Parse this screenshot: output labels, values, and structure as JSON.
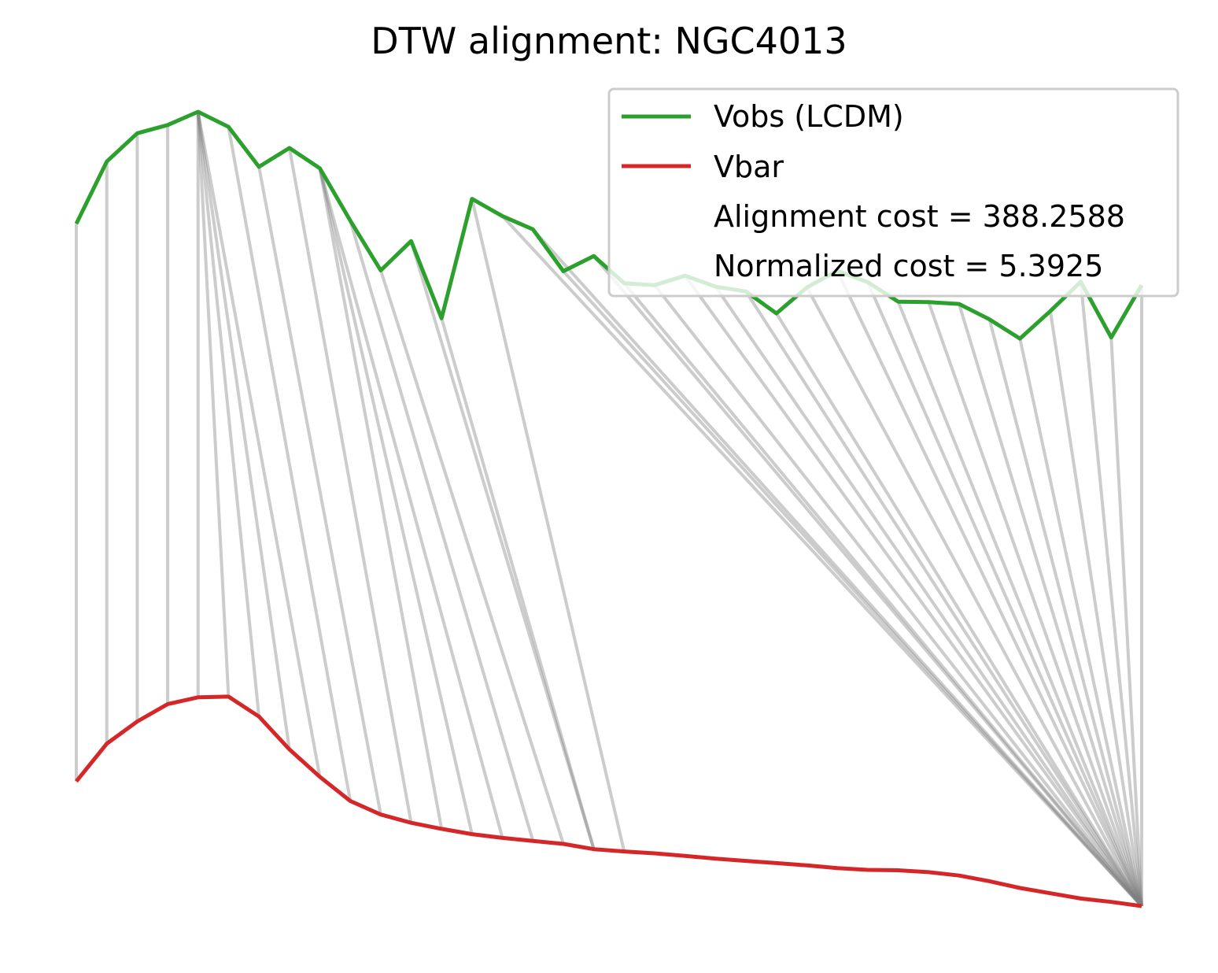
{
  "chart_data": {
    "type": "line",
    "title": "DTW alignment: NGC4013",
    "xlabel": "",
    "ylabel": "",
    "axes_visible": false,
    "grid": false,
    "legend_position": "top-right",
    "colors": {
      "vobs": "#2ca02c",
      "vbar": "#d62728",
      "alignment": "#808080"
    },
    "series": [
      {
        "name": "Vobs (LCDM)",
        "key": "vobs",
        "values": [
          0.7,
          0.865,
          0.94,
          0.962,
          0.997,
          0.957,
          0.851,
          0.901,
          0.847,
          0.708,
          0.576,
          0.654,
          0.449,
          0.766,
          0.72,
          0.685,
          0.574,
          0.614,
          0.542,
          0.537,
          0.562,
          0.533,
          0.52,
          0.462,
          0.531,
          0.575,
          0.545,
          0.493,
          0.492,
          0.487,
          0.446,
          0.395,
          0.468,
          0.546,
          0.398,
          0.537
        ]
      },
      {
        "name": "Vbar",
        "key": "vbar",
        "values": [
          -0.78,
          -0.68,
          -0.621,
          -0.575,
          -0.557,
          -0.555,
          -0.608,
          -0.695,
          -0.768,
          -0.832,
          -0.868,
          -0.89,
          -0.906,
          -0.92,
          -0.93,
          -0.938,
          -0.946,
          -0.96,
          -0.966,
          -0.971,
          -0.978,
          -0.985,
          -0.991,
          -0.997,
          -1.003,
          -1.01,
          -1.015,
          -1.016,
          -1.021,
          -1.03,
          -1.045,
          -1.063,
          -1.077,
          -1.091,
          -1.1,
          -1.111
        ]
      }
    ],
    "alignment_path": [
      [
        0,
        0
      ],
      [
        1,
        1
      ],
      [
        2,
        2
      ],
      [
        3,
        3
      ],
      [
        4,
        4
      ],
      [
        4,
        5
      ],
      [
        4,
        6
      ],
      [
        4,
        7
      ],
      [
        4,
        8
      ],
      [
        5,
        9
      ],
      [
        6,
        10
      ],
      [
        7,
        11
      ],
      [
        8,
        12
      ],
      [
        8,
        13
      ],
      [
        8,
        14
      ],
      [
        9,
        15
      ],
      [
        10,
        16
      ],
      [
        11,
        17
      ],
      [
        12,
        17
      ],
      [
        13,
        18
      ],
      [
        14,
        35
      ],
      [
        15,
        35
      ],
      [
        16,
        35
      ],
      [
        17,
        35
      ],
      [
        18,
        35
      ],
      [
        19,
        35
      ],
      [
        20,
        35
      ],
      [
        21,
        35
      ],
      [
        22,
        35
      ],
      [
        23,
        35
      ],
      [
        24,
        35
      ],
      [
        25,
        35
      ],
      [
        26,
        35
      ],
      [
        27,
        35
      ],
      [
        28,
        35
      ],
      [
        29,
        35
      ],
      [
        30,
        35
      ],
      [
        31,
        35
      ],
      [
        32,
        35
      ],
      [
        33,
        35
      ],
      [
        34,
        35
      ],
      [
        35,
        35
      ]
    ],
    "legend": {
      "entries": [
        "Vobs (LCDM)",
        "Vbar"
      ],
      "notes": [
        "Alignment cost = 388.2588",
        "Normalized cost = 5.3925"
      ]
    }
  }
}
